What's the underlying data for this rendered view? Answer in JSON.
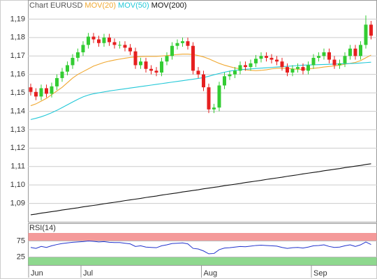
{
  "chart_data": [
    {
      "type": "candlestick",
      "title": "Chart EURUSD",
      "categories": [
        "Jun",
        null,
        null,
        null,
        null,
        null,
        null,
        null,
        null,
        null,
        "Jul",
        null,
        null,
        null,
        null,
        null,
        null,
        null,
        null,
        null,
        null,
        null,
        null,
        null,
        null,
        null,
        null,
        null,
        null,
        null,
        null,
        null,
        null,
        "Aug",
        null,
        null,
        null,
        null,
        null,
        null,
        null,
        null,
        null,
        null,
        null,
        null,
        null,
        null,
        null,
        null,
        null,
        null,
        null,
        null,
        "Sep",
        null,
        null,
        null,
        null,
        null,
        null,
        null,
        null,
        null,
        null,
        null
      ],
      "open": [
        1.153,
        1.1505,
        1.148,
        1.1525,
        1.1495,
        1.1535,
        1.158,
        1.1615,
        1.165,
        1.169,
        1.172,
        1.176,
        1.1805,
        1.179,
        1.177,
        1.18,
        1.1775,
        1.176,
        1.176,
        1.1745,
        1.1725,
        1.165,
        1.167,
        1.163,
        1.162,
        1.161,
        1.167,
        1.17,
        1.1755,
        1.177,
        1.178,
        1.1755,
        1.162,
        1.16,
        1.153,
        1.141,
        1.142,
        1.154,
        1.159,
        1.16,
        1.162,
        1.165,
        1.164,
        1.166,
        1.1685,
        1.17,
        1.169,
        1.168,
        1.167,
        1.164,
        1.161,
        1.163,
        1.164,
        1.162,
        1.165,
        1.169,
        1.17,
        1.172,
        1.168,
        1.165,
        1.166,
        1.17,
        1.174,
        1.17,
        1.176,
        1.187
      ],
      "high": [
        1.155,
        1.1525,
        1.1545,
        1.1545,
        1.1555,
        1.16,
        1.1635,
        1.167,
        1.171,
        1.174,
        1.178,
        1.1825,
        1.1825,
        1.181,
        1.182,
        1.182,
        1.1795,
        1.178,
        1.178,
        1.1765,
        1.1745,
        1.169,
        1.169,
        1.165,
        1.164,
        1.169,
        1.172,
        1.1775,
        1.179,
        1.18,
        1.18,
        1.1775,
        1.164,
        1.162,
        1.155,
        1.144,
        1.156,
        1.161,
        1.162,
        1.164,
        1.167,
        1.167,
        1.168,
        1.1705,
        1.172,
        1.172,
        1.171,
        1.17,
        1.169,
        1.166,
        1.165,
        1.166,
        1.166,
        1.167,
        1.171,
        1.172,
        1.174,
        1.174,
        1.17,
        1.168,
        1.172,
        1.176,
        1.176,
        1.178,
        1.192,
        1.189
      ],
      "low": [
        1.1485,
        1.146,
        1.146,
        1.1475,
        1.1475,
        1.1515,
        1.156,
        1.1595,
        1.163,
        1.167,
        1.17,
        1.174,
        1.177,
        1.175,
        1.175,
        1.1755,
        1.174,
        1.174,
        1.1725,
        1.1705,
        1.163,
        1.163,
        1.161,
        1.16,
        1.159,
        1.159,
        1.165,
        1.168,
        1.1735,
        1.175,
        1.1735,
        1.16,
        1.158,
        1.151,
        1.139,
        1.139,
        1.14,
        1.152,
        1.157,
        1.158,
        1.16,
        1.162,
        1.162,
        1.164,
        1.1665,
        1.167,
        1.166,
        1.165,
        1.162,
        1.159,
        1.159,
        1.161,
        1.16,
        1.16,
        1.163,
        1.167,
        1.168,
        1.166,
        1.163,
        1.163,
        1.164,
        1.168,
        1.168,
        1.168,
        1.174,
        1.179
      ],
      "close": [
        1.1505,
        1.148,
        1.1525,
        1.1495,
        1.1535,
        1.158,
        1.1615,
        1.165,
        1.169,
        1.172,
        1.176,
        1.1805,
        1.179,
        1.177,
        1.18,
        1.1775,
        1.176,
        1.176,
        1.1745,
        1.1725,
        1.165,
        1.167,
        1.163,
        1.162,
        1.161,
        1.167,
        1.17,
        1.1755,
        1.177,
        1.178,
        1.1755,
        1.162,
        1.16,
        1.153,
        1.141,
        1.142,
        1.154,
        1.159,
        1.16,
        1.162,
        1.165,
        1.164,
        1.166,
        1.1685,
        1.17,
        1.169,
        1.168,
        1.167,
        1.164,
        1.161,
        1.163,
        1.164,
        1.162,
        1.165,
        1.169,
        1.17,
        1.172,
        1.168,
        1.165,
        1.166,
        1.17,
        1.174,
        1.17,
        1.176,
        1.187,
        1.181
      ],
      "up_color": "#33cc33",
      "down_color": "#e62020",
      "series": [
        {
          "name": "MOV(20)",
          "color": "#f0a830",
          "values": [
            1.143,
            1.144,
            1.1455,
            1.147,
            1.149,
            1.151,
            1.153,
            1.1555,
            1.158,
            1.16,
            1.1615,
            1.163,
            1.1645,
            1.1655,
            1.1665,
            1.1672,
            1.1678,
            1.1683,
            1.1688,
            1.1692,
            1.1695,
            1.1697,
            1.1698,
            1.1698,
            1.1698,
            1.17,
            1.1702,
            1.1705,
            1.1708,
            1.171,
            1.171,
            1.1708,
            1.1702,
            1.1695,
            1.1685,
            1.1672,
            1.166,
            1.165,
            1.1642,
            1.1635,
            1.163,
            1.1625,
            1.1622,
            1.162,
            1.1622,
            1.1625,
            1.163,
            1.1633,
            1.1634,
            1.1633,
            1.163,
            1.1628,
            1.1628,
            1.163,
            1.1633,
            1.1636,
            1.164,
            1.1643,
            1.1646,
            1.165,
            1.1655,
            1.166,
            1.1665,
            1.1675,
            1.169,
            1.1705
          ]
        },
        {
          "name": "MOV(50)",
          "color": "#22c8d8",
          "values": [
            1.1355,
            1.1362,
            1.137,
            1.138,
            1.1392,
            1.1405,
            1.142,
            1.1435,
            1.145,
            1.1465,
            1.1478,
            1.1488,
            1.1495,
            1.15,
            1.1505,
            1.151,
            1.1514,
            1.1518,
            1.1522,
            1.1526,
            1.153,
            1.1534,
            1.1538,
            1.1542,
            1.1546,
            1.155,
            1.1554,
            1.1558,
            1.1562,
            1.1566,
            1.157,
            1.1574,
            1.1578,
            1.1583,
            1.159,
            1.1598,
            1.1605,
            1.1612,
            1.1618,
            1.1622,
            1.1625,
            1.1628,
            1.163,
            1.1632,
            1.1634,
            1.1636,
            1.1638,
            1.164,
            1.1642,
            1.1644,
            1.1646,
            1.1648,
            1.165,
            1.1651,
            1.1652,
            1.1653,
            1.1654,
            1.1655,
            1.1656,
            1.1657,
            1.1658,
            1.1659,
            1.166,
            1.1662,
            1.1664,
            1.1666
          ]
        },
        {
          "name": "MOV(200)",
          "color": "#111111",
          "values": [
            1.0838,
            1.0842,
            1.0847,
            1.0851,
            1.0855,
            1.0859,
            1.0864,
            1.0868,
            1.0872,
            1.0876,
            1.0881,
            1.0885,
            1.0889,
            1.0893,
            1.0898,
            1.0902,
            1.0906,
            1.091,
            1.0915,
            1.0919,
            1.0923,
            1.0927,
            1.0932,
            1.0936,
            1.094,
            1.0945,
            1.0949,
            1.0953,
            1.0957,
            1.0962,
            1.0966,
            1.097,
            1.0974,
            1.0979,
            1.0983,
            1.0987,
            1.0991,
            1.0996,
            1.1,
            1.1004,
            1.1008,
            1.1013,
            1.1017,
            1.1021,
            1.1025,
            1.103,
            1.1034,
            1.1038,
            1.1042,
            1.1047,
            1.1051,
            1.1055,
            1.106,
            1.1064,
            1.1068,
            1.1072,
            1.1077,
            1.1081,
            1.1085,
            1.1089,
            1.1094,
            1.1098,
            1.1102,
            1.1106,
            1.1111,
            1.1115
          ]
        }
      ],
      "ylim": [
        1.08,
        1.2
      ],
      "yticks": [
        {
          "value": 1.09,
          "label": "1,09"
        },
        {
          "value": 1.1,
          "label": "1,10"
        },
        {
          "value": 1.11,
          "label": "1,11"
        },
        {
          "value": 1.12,
          "label": "1,12"
        },
        {
          "value": 1.13,
          "label": "1,13"
        },
        {
          "value": 1.14,
          "label": "1,14"
        },
        {
          "value": 1.15,
          "label": "1,15"
        },
        {
          "value": 1.16,
          "label": "1,16"
        },
        {
          "value": 1.17,
          "label": "1,17"
        },
        {
          "value": 1.18,
          "label": "1,18"
        },
        {
          "value": 1.19,
          "label": "1,19"
        }
      ],
      "grid": true
    },
    {
      "type": "line",
      "title": "RSI(14)",
      "series": [
        {
          "color": "#2233cc",
          "values": [
            55,
            52,
            58,
            55,
            60,
            64,
            67,
            69,
            71,
            72,
            73,
            75,
            74,
            72,
            73,
            71,
            70,
            70,
            68,
            66,
            58,
            60,
            56,
            55,
            54,
            60,
            63,
            67,
            68,
            69,
            66,
            52,
            50,
            44,
            35,
            36,
            48,
            53,
            54,
            56,
            58,
            57,
            59,
            61,
            62,
            61,
            60,
            59,
            55,
            52,
            54,
            55,
            53,
            56,
            60,
            61,
            63,
            58,
            55,
            56,
            60,
            63,
            58,
            63,
            72,
            64
          ]
        }
      ],
      "bands": [
        {
          "from": 75,
          "to": 100,
          "color": "#f49a9a"
        },
        {
          "from": 0,
          "to": 25,
          "color": "#8ed88e"
        }
      ],
      "ylim": [
        0,
        100
      ],
      "yticks": [
        25,
        75
      ]
    }
  ]
}
